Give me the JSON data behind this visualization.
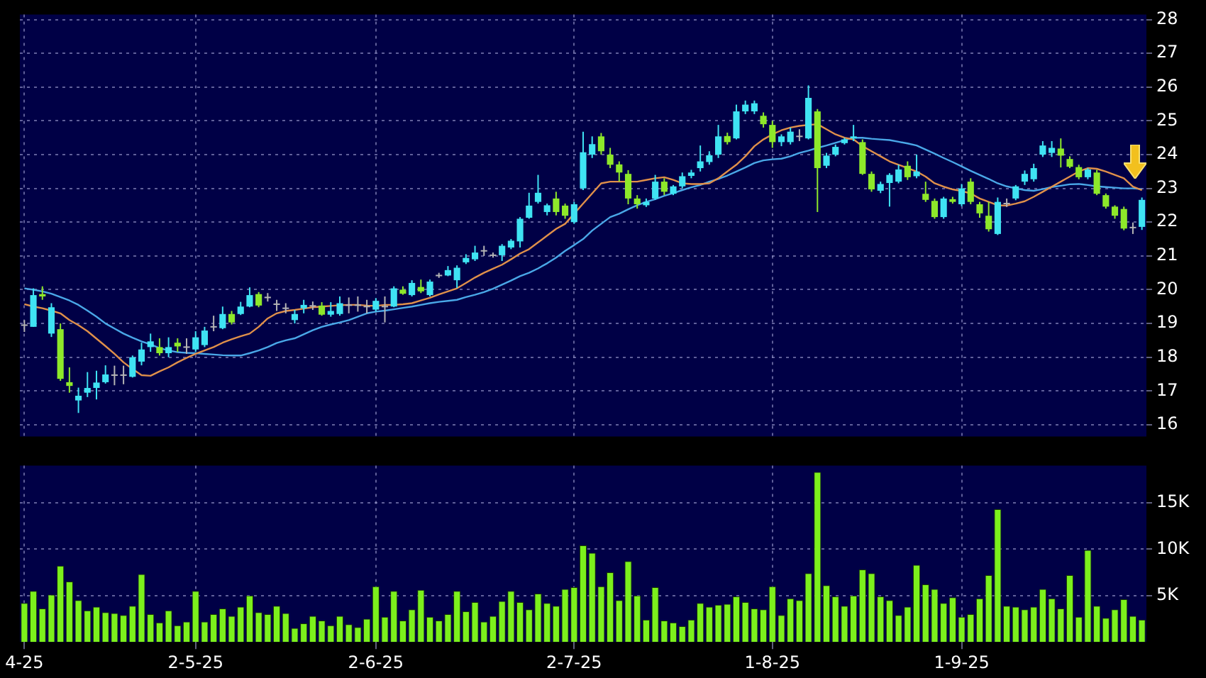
{
  "chart_data": [
    {
      "type": "candlestick",
      "categories": [
        null,
        null,
        null,
        null,
        null,
        null,
        null,
        null,
        null,
        null,
        null,
        null,
        null,
        null,
        null,
        null,
        null,
        null,
        null,
        null,
        null,
        null,
        null,
        null,
        null,
        null,
        null,
        null,
        null,
        null,
        null,
        null,
        null,
        null,
        null,
        null,
        null,
        null,
        null,
        null,
        null,
        null,
        null,
        null,
        null,
        null,
        null,
        null,
        null,
        null,
        null,
        null,
        null,
        null,
        null,
        null,
        null,
        null,
        null,
        null,
        null,
        null,
        null,
        null,
        null,
        null,
        null,
        null,
        null,
        null,
        null,
        null,
        null,
        null,
        null,
        null,
        null,
        null,
        null,
        null,
        null,
        null,
        null,
        null,
        null,
        null,
        null,
        null,
        null,
        null,
        null,
        null,
        null,
        null,
        null,
        null,
        null,
        null,
        null,
        null,
        null,
        null,
        null,
        null,
        null,
        null,
        null,
        null,
        null,
        null,
        null,
        null,
        null,
        null,
        null,
        null,
        null,
        null,
        null,
        null,
        null,
        null,
        null,
        null,
        null
      ],
      "ohlc": [
        [
          18.95,
          19.1,
          18.75,
          18.95
        ],
        [
          18.9,
          20.04,
          18.9,
          19.84
        ],
        [
          19.87,
          20.1,
          19.7,
          19.8
        ],
        [
          18.7,
          19.6,
          18.6,
          19.48
        ],
        [
          18.83,
          19.0,
          17.3,
          17.36
        ],
        [
          17.26,
          17.7,
          16.95,
          17.15
        ],
        [
          16.72,
          17.1,
          16.35,
          16.86
        ],
        [
          16.95,
          17.56,
          16.82,
          17.09
        ],
        [
          17.09,
          17.6,
          16.75,
          17.25
        ],
        [
          17.26,
          17.76,
          17.22,
          17.49
        ],
        [
          17.47,
          17.75,
          17.17,
          17.47
        ],
        [
          17.47,
          17.75,
          17.2,
          17.47
        ],
        [
          17.42,
          18.05,
          17.4,
          18.0
        ],
        [
          17.87,
          18.43,
          17.76,
          18.23
        ],
        [
          18.3,
          18.7,
          18.16,
          18.47
        ],
        [
          18.3,
          18.56,
          18.05,
          18.12
        ],
        [
          18.12,
          18.59,
          18.0,
          18.3
        ],
        [
          18.43,
          18.56,
          18.16,
          18.32
        ],
        [
          18.3,
          18.56,
          18.1,
          18.3
        ],
        [
          18.23,
          18.77,
          18.16,
          18.59
        ],
        [
          18.36,
          18.9,
          18.3,
          18.79
        ],
        [
          18.9,
          19.23,
          18.77,
          18.9
        ],
        [
          18.86,
          19.5,
          18.83,
          19.28
        ],
        [
          19.28,
          19.37,
          18.97,
          19.03
        ],
        [
          19.28,
          19.64,
          19.25,
          19.5
        ],
        [
          19.5,
          20.07,
          19.48,
          19.84
        ],
        [
          19.87,
          19.93,
          19.48,
          19.53
        ],
        [
          19.77,
          19.9,
          19.65,
          19.77
        ],
        [
          19.57,
          19.7,
          19.37,
          19.57
        ],
        [
          19.45,
          19.6,
          19.3,
          19.45
        ],
        [
          19.1,
          19.4,
          19.0,
          19.28
        ],
        [
          19.45,
          19.7,
          19.3,
          19.55
        ],
        [
          19.52,
          19.65,
          19.4,
          19.52
        ],
        [
          19.53,
          19.63,
          19.23,
          19.26
        ],
        [
          19.26,
          19.63,
          19.2,
          19.37
        ],
        [
          19.28,
          19.8,
          19.23,
          19.6
        ],
        [
          19.54,
          19.77,
          19.3,
          19.54
        ],
        [
          19.54,
          19.8,
          19.35,
          19.54
        ],
        [
          19.5,
          19.7,
          19.3,
          19.5
        ],
        [
          19.41,
          19.75,
          19.35,
          19.67
        ],
        [
          19.5,
          19.8,
          19.03,
          19.5
        ],
        [
          19.5,
          20.1,
          19.48,
          20.04
        ],
        [
          20.0,
          20.1,
          19.85,
          19.88
        ],
        [
          19.84,
          20.28,
          19.8,
          20.2
        ],
        [
          20.08,
          20.3,
          19.9,
          19.95
        ],
        [
          19.84,
          20.3,
          19.8,
          20.24
        ],
        [
          20.42,
          20.5,
          20.35,
          20.42
        ],
        [
          20.42,
          20.7,
          20.4,
          20.58
        ],
        [
          20.28,
          20.72,
          20.05,
          20.65
        ],
        [
          20.81,
          21.05,
          20.76,
          20.94
        ],
        [
          20.9,
          21.3,
          20.85,
          21.1
        ],
        [
          21.15,
          21.3,
          21.0,
          21.15
        ],
        [
          21.02,
          21.1,
          20.95,
          21.02
        ],
        [
          21.02,
          21.35,
          20.85,
          21.3
        ],
        [
          21.25,
          21.5,
          21.2,
          21.45
        ],
        [
          21.43,
          22.15,
          21.25,
          22.1
        ],
        [
          22.13,
          22.87,
          22.1,
          22.49
        ],
        [
          22.6,
          23.4,
          22.55,
          22.87
        ],
        [
          22.3,
          22.55,
          22.2,
          22.5
        ],
        [
          22.7,
          22.9,
          22.2,
          22.3
        ],
        [
          22.49,
          22.55,
          22.1,
          22.19
        ],
        [
          22.0,
          22.6,
          21.95,
          22.53
        ],
        [
          23.0,
          24.68,
          22.95,
          24.07
        ],
        [
          24.0,
          24.54,
          23.9,
          24.31
        ],
        [
          24.54,
          24.64,
          24.0,
          24.1
        ],
        [
          24.0,
          24.2,
          23.6,
          23.7
        ],
        [
          23.71,
          23.8,
          23.2,
          23.47
        ],
        [
          23.43,
          23.54,
          22.53,
          22.7
        ],
        [
          22.7,
          22.8,
          22.4,
          22.53
        ],
        [
          22.5,
          22.7,
          22.45,
          22.6
        ],
        [
          22.7,
          23.4,
          22.66,
          23.2
        ],
        [
          23.2,
          23.3,
          22.8,
          22.9
        ],
        [
          22.84,
          23.1,
          22.8,
          23.06
        ],
        [
          23.06,
          23.47,
          23.0,
          23.36
        ],
        [
          23.37,
          23.55,
          23.3,
          23.47
        ],
        [
          23.6,
          24.27,
          23.5,
          23.8
        ],
        [
          23.78,
          24.1,
          23.7,
          23.98
        ],
        [
          24.0,
          24.88,
          23.9,
          24.54
        ],
        [
          24.55,
          24.65,
          24.3,
          24.37
        ],
        [
          24.48,
          25.48,
          24.45,
          25.28
        ],
        [
          25.28,
          25.6,
          25.2,
          25.48
        ],
        [
          25.28,
          25.6,
          25.2,
          25.52
        ],
        [
          25.15,
          25.25,
          24.8,
          24.9
        ],
        [
          24.88,
          25.0,
          24.2,
          24.37
        ],
        [
          24.37,
          24.6,
          24.25,
          24.54
        ],
        [
          24.37,
          24.8,
          24.3,
          24.68
        ],
        [
          24.54,
          24.75,
          24.4,
          24.54
        ],
        [
          24.48,
          26.05,
          24.45,
          25.68
        ],
        [
          25.28,
          25.35,
          22.3,
          23.6
        ],
        [
          23.67,
          24.05,
          23.6,
          23.97
        ],
        [
          24.0,
          24.3,
          23.95,
          24.23
        ],
        [
          24.34,
          24.5,
          24.3,
          24.45
        ],
        [
          24.48,
          24.88,
          24.4,
          24.54
        ],
        [
          24.37,
          24.45,
          23.4,
          23.43
        ],
        [
          23.43,
          23.5,
          22.9,
          22.97
        ],
        [
          22.93,
          23.2,
          22.86,
          23.13
        ],
        [
          23.16,
          23.45,
          22.46,
          23.4
        ],
        [
          23.2,
          23.7,
          23.15,
          23.56
        ],
        [
          23.67,
          23.8,
          23.25,
          23.33
        ],
        [
          23.36,
          24.0,
          23.3,
          23.5
        ],
        [
          22.84,
          23.2,
          22.6,
          22.66
        ],
        [
          22.63,
          22.7,
          22.1,
          22.15
        ],
        [
          22.15,
          22.75,
          22.1,
          22.7
        ],
        [
          22.68,
          22.75,
          22.55,
          22.6
        ],
        [
          22.53,
          23.13,
          22.47,
          23.0
        ],
        [
          23.2,
          23.3,
          22.53,
          22.6
        ],
        [
          22.53,
          22.6,
          22.13,
          22.26
        ],
        [
          22.19,
          22.6,
          21.72,
          21.79
        ],
        [
          21.65,
          22.73,
          21.62,
          22.6
        ],
        [
          22.55,
          22.7,
          22.45,
          22.55
        ],
        [
          22.7,
          23.1,
          22.65,
          23.06
        ],
        [
          23.2,
          23.53,
          23.1,
          23.43
        ],
        [
          23.27,
          23.73,
          23.2,
          23.6
        ],
        [
          24.0,
          24.4,
          23.93,
          24.27
        ],
        [
          24.05,
          24.4,
          23.93,
          24.2
        ],
        [
          24.18,
          24.48,
          23.62,
          23.97
        ],
        [
          23.87,
          23.95,
          23.6,
          23.64
        ],
        [
          23.63,
          23.7,
          23.27,
          23.33
        ],
        [
          23.33,
          23.6,
          23.27,
          23.56
        ],
        [
          23.47,
          23.55,
          22.8,
          22.84
        ],
        [
          22.8,
          22.85,
          22.4,
          22.46
        ],
        [
          22.46,
          22.5,
          22.1,
          22.19
        ],
        [
          22.39,
          22.46,
          21.76,
          21.81
        ],
        [
          21.84,
          21.99,
          21.65,
          21.84
        ],
        [
          21.86,
          22.73,
          21.77,
          22.66
        ]
      ],
      "colors": [
        "#b4b4b4",
        "#3fe3f3",
        "#8ee82a",
        "#3fe3f3",
        "#8ee82a",
        "#8ee82a",
        "#3fe3f3",
        "#3fe3f3",
        "#3fe3f3",
        "#3fe3f3",
        "#b4b4b4",
        "#b4b4b4",
        "#3fe3f3",
        "#3fe3f3",
        "#3fe3f3",
        "#8ee82a",
        "#3fe3f3",
        "#8ee82a",
        "#b4b4b4",
        "#3fe3f3",
        "#3fe3f3",
        "#b4b4b4",
        "#3fe3f3",
        "#8ee82a",
        "#3fe3f3",
        "#3fe3f3",
        "#8ee82a",
        "#b4b4b4",
        "#b4b4b4",
        "#b4b4b4",
        "#3fe3f3",
        "#3fe3f3",
        "#b4b4b4",
        "#8ee82a",
        "#3fe3f3",
        "#3fe3f3",
        "#b4b4b4",
        "#b4b4b4",
        "#b4b4b4",
        "#3fe3f3",
        "#b4b4b4",
        "#3fe3f3",
        "#8ee82a",
        "#3fe3f3",
        "#8ee82a",
        "#3fe3f3",
        "#b4b4b4",
        "#3fe3f3",
        "#3fe3f3",
        "#3fe3f3",
        "#3fe3f3",
        "#b4b4b4",
        "#b4b4b4",
        "#3fe3f3",
        "#3fe3f3",
        "#3fe3f3",
        "#3fe3f3",
        "#3fe3f3",
        "#3fe3f3",
        "#8ee82a",
        "#8ee82a",
        "#3fe3f3",
        "#3fe3f3",
        "#3fe3f3",
        "#8ee82a",
        "#8ee82a",
        "#8ee82a",
        "#8ee82a",
        "#8ee82a",
        "#3fe3f3",
        "#3fe3f3",
        "#8ee82a",
        "#3fe3f3",
        "#3fe3f3",
        "#3fe3f3",
        "#3fe3f3",
        "#3fe3f3",
        "#3fe3f3",
        "#8ee82a",
        "#3fe3f3",
        "#3fe3f3",
        "#3fe3f3",
        "#8ee82a",
        "#8ee82a",
        "#3fe3f3",
        "#3fe3f3",
        "#b4b4b4",
        "#3fe3f3",
        "#8ee82a",
        "#3fe3f3",
        "#3fe3f3",
        "#3fe3f3",
        "#3fe3f3",
        "#8ee82a",
        "#8ee82a",
        "#3fe3f3",
        "#3fe3f3",
        "#3fe3f3",
        "#8ee82a",
        "#3fe3f3",
        "#8ee82a",
        "#8ee82a",
        "#3fe3f3",
        "#8ee82a",
        "#3fe3f3",
        "#8ee82a",
        "#8ee82a",
        "#8ee82a",
        "#3fe3f3",
        "#b4b4b4",
        "#3fe3f3",
        "#3fe3f3",
        "#3fe3f3",
        "#3fe3f3",
        "#3fe3f3",
        "#8ee82a",
        "#8ee82a",
        "#8ee82a",
        "#3fe3f3",
        "#8ee82a",
        "#8ee82a",
        "#8ee82a",
        "#8ee82a",
        "#b4b4b4",
        "#3fe3f3"
      ],
      "series": [
        {
          "type": "line",
          "color": "#e0904a",
          "values": [
            19.57,
            19.5,
            19.45,
            19.38,
            19.3,
            19.1,
            18.95,
            18.77,
            18.55,
            18.33,
            18.1,
            17.85,
            17.65,
            17.47,
            17.45,
            17.58,
            17.7,
            17.85,
            17.98,
            18.1,
            18.2,
            18.3,
            18.43,
            18.53,
            18.62,
            18.7,
            18.9,
            19.15,
            19.3,
            19.37,
            19.4,
            19.44,
            19.48,
            19.5,
            19.52,
            19.54,
            19.55,
            19.55,
            19.53,
            19.52,
            19.55,
            19.55,
            19.57,
            19.6,
            19.68,
            19.76,
            19.86,
            19.95,
            20.04,
            20.2,
            20.36,
            20.5,
            20.62,
            20.74,
            20.9,
            21.07,
            21.2,
            21.4,
            21.6,
            21.8,
            21.95,
            22.25,
            22.55,
            22.85,
            23.15,
            23.2,
            23.2,
            23.2,
            23.2,
            23.25,
            23.3,
            23.33,
            23.25,
            23.15,
            23.13,
            23.13,
            23.15,
            23.3,
            23.5,
            23.7,
            23.95,
            24.25,
            24.45,
            24.6,
            24.72,
            24.8,
            24.85,
            24.88,
            24.9,
            24.75,
            24.6,
            24.5,
            24.45,
            24.25,
            24.1,
            23.95,
            23.8,
            23.7,
            23.6,
            23.5,
            23.35,
            23.15,
            23.05,
            22.97,
            22.92,
            22.85,
            22.7,
            22.6,
            22.5,
            22.49,
            22.55,
            22.62,
            22.75,
            22.9,
            23.05,
            23.2,
            23.35,
            23.5,
            23.6,
            23.58,
            23.5,
            23.4,
            23.3,
            23.05,
            22.95
          ]
        },
        {
          "type": "line",
          "color": "#4aa8e8",
          "values": [
            20.04,
            20.0,
            19.95,
            19.88,
            19.78,
            19.68,
            19.55,
            19.38,
            19.2,
            19.0,
            18.85,
            18.7,
            18.58,
            18.47,
            18.38,
            18.27,
            18.2,
            18.15,
            18.13,
            18.12,
            18.1,
            18.08,
            18.06,
            18.05,
            18.05,
            18.12,
            18.2,
            18.3,
            18.42,
            18.5,
            18.56,
            18.68,
            18.8,
            18.9,
            18.97,
            19.03,
            19.1,
            19.2,
            19.3,
            19.35,
            19.38,
            19.42,
            19.46,
            19.5,
            19.55,
            19.6,
            19.64,
            19.67,
            19.7,
            19.78,
            19.85,
            19.93,
            20.03,
            20.15,
            20.27,
            20.4,
            20.5,
            20.63,
            20.78,
            20.95,
            21.15,
            21.32,
            21.5,
            21.75,
            21.95,
            22.15,
            22.25,
            22.38,
            22.5,
            22.6,
            22.68,
            22.78,
            22.86,
            22.95,
            23.03,
            23.1,
            23.2,
            23.28,
            23.38,
            23.5,
            23.62,
            23.75,
            23.83,
            23.86,
            23.88,
            23.95,
            24.05,
            24.12,
            24.2,
            24.27,
            24.35,
            24.43,
            24.5,
            24.5,
            24.47,
            24.45,
            24.43,
            24.38,
            24.33,
            24.27,
            24.15,
            24.03,
            23.9,
            23.78,
            23.65,
            23.52,
            23.4,
            23.28,
            23.15,
            23.06,
            23.0,
            22.95,
            22.93,
            22.98,
            23.04,
            23.08,
            23.12,
            23.13,
            23.1,
            23.06,
            23.04,
            23.02,
            23.0,
            23.0,
            22.98
          ]
        }
      ],
      "ylim": [
        15.65,
        28.15
      ],
      "yticks": [
        16,
        17,
        18,
        19,
        20,
        21,
        22,
        23,
        24,
        25,
        26,
        27,
        28
      ],
      "grid": true,
      "tick_labels": "y"
    },
    {
      "type": "bar",
      "categories": [
        "4-25",
        null,
        null,
        null,
        null,
        null,
        null,
        null,
        null,
        null,
        null,
        null,
        null,
        null,
        null,
        null,
        null,
        null,
        null,
        "2-5-25",
        null,
        null,
        null,
        null,
        null,
        null,
        null,
        null,
        null,
        null,
        null,
        null,
        null,
        null,
        null,
        null,
        null,
        null,
        null,
        "2-6-25",
        null,
        null,
        null,
        null,
        null,
        null,
        null,
        null,
        null,
        null,
        null,
        null,
        null,
        null,
        null,
        null,
        null,
        null,
        null,
        null,
        null,
        "2-7-25",
        null,
        null,
        null,
        null,
        null,
        null,
        null,
        null,
        null,
        null,
        null,
        null,
        null,
        null,
        null,
        null,
        null,
        null,
        null,
        null,
        null,
        "1-8-25",
        null,
        null,
        null,
        null,
        null,
        null,
        null,
        null,
        null,
        null,
        null,
        null,
        null,
        null,
        null,
        null,
        null,
        null,
        null,
        null,
        "1-9-25",
        null,
        null,
        null,
        null,
        null,
        null,
        null,
        null,
        null,
        null,
        null,
        null,
        null,
        null,
        null,
        null,
        null,
        null,
        null,
        null
      ],
      "color": "#7cf01c",
      "values": [
        4.2,
        5.5,
        3.6,
        5.1,
        8.2,
        6.5,
        4.5,
        3.4,
        3.8,
        3.2,
        3.1,
        2.9,
        3.9,
        7.3,
        3.0,
        2.1,
        3.4,
        1.8,
        2.2,
        5.5,
        2.2,
        3.0,
        3.6,
        2.8,
        3.8,
        5.0,
        3.2,
        3.0,
        3.9,
        3.1,
        1.5,
        2.0,
        2.8,
        2.3,
        1.8,
        2.8,
        1.9,
        1.6,
        2.5,
        6.0,
        2.7,
        5.5,
        2.3,
        3.5,
        5.6,
        2.7,
        2.3,
        3.0,
        5.5,
        3.3,
        4.3,
        2.2,
        2.8,
        4.4,
        5.5,
        4.3,
        3.5,
        5.2,
        4.2,
        3.9,
        5.7,
        5.9,
        10.4,
        9.6,
        6.0,
        7.5,
        4.5,
        8.7,
        5.0,
        2.4,
        5.9,
        2.3,
        2.1,
        1.7,
        2.4,
        4.2,
        3.8,
        4.0,
        4.1,
        4.9,
        4.3,
        3.6,
        3.5,
        6.0,
        2.9,
        4.7,
        4.5,
        7.4,
        18.3,
        6.1,
        4.9,
        3.9,
        5.0,
        7.8,
        7.4,
        4.9,
        4.5,
        2.9,
        3.8,
        8.3,
        6.2,
        5.7,
        4.2,
        4.8,
        2.7,
        3.0,
        4.7,
        7.2,
        14.3,
        3.9,
        3.8,
        3.5,
        3.8,
        5.7,
        4.7,
        3.6,
        7.2,
        2.7,
        9.9,
        3.9,
        2.6,
        3.5,
        4.6,
        2.8,
        2.4
      ],
      "ylim": [
        0,
        19
      ],
      "yticks": [
        {
          "value": 5,
          "label": "5K"
        },
        {
          "value": 10,
          "label": "10K"
        },
        {
          "value": 15,
          "label": "15K"
        }
      ],
      "grid": true
    }
  ]
}
